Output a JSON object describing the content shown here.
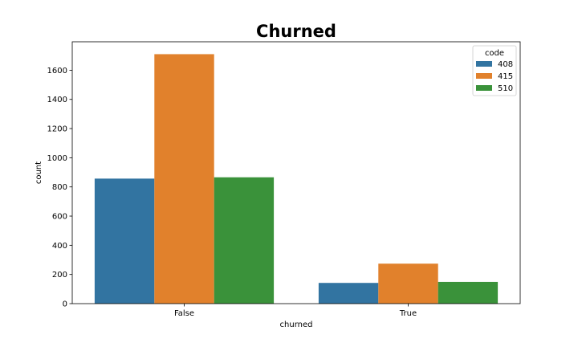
{
  "chart_data": {
    "type": "bar",
    "title": "Churned",
    "xlabel": "churned",
    "ylabel": "count",
    "categories": [
      "False",
      "True"
    ],
    "series": [
      {
        "name": "408",
        "values": [
          857,
          142
        ],
        "color": "#3274a1"
      },
      {
        "name": "415",
        "values": [
          1710,
          274
        ],
        "color": "#e1812c"
      },
      {
        "name": "510",
        "values": [
          866,
          149
        ],
        "color": "#3a923a"
      }
    ],
    "ylim": [
      0,
      1795
    ],
    "yticks": [
      0,
      200,
      400,
      600,
      800,
      1000,
      1200,
      1400,
      1600
    ],
    "grid": false,
    "legend": {
      "title": "code",
      "placement": "top-right"
    }
  }
}
